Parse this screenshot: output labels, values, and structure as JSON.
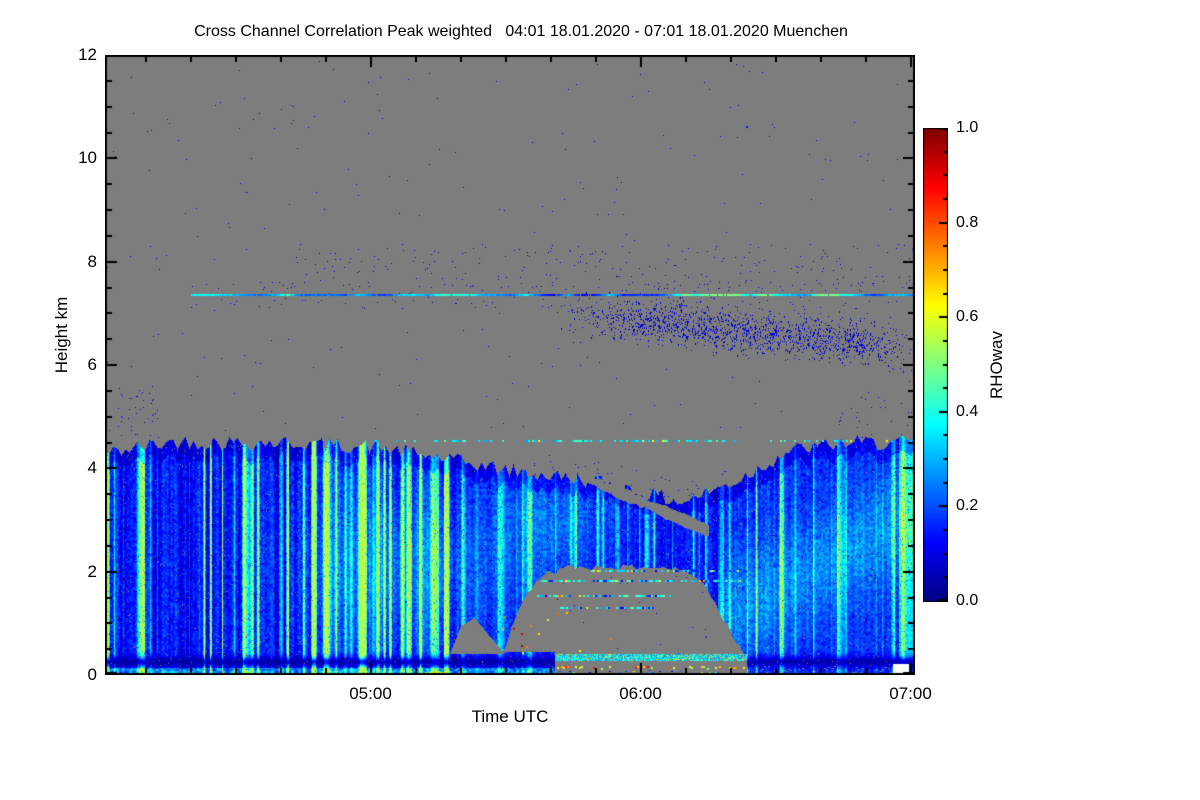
{
  "chart_data": {
    "type": "heatmap",
    "title": "Cross Channel Correlation Peak weighted   04:01 18.01.2020 - 07:01 18.01.2020 Muenchen",
    "xlabel": "Time UTC",
    "ylabel": "Height km",
    "time_start": "04:01",
    "time_end": "07:01",
    "date": "18.01.2020",
    "station": "Muenchen",
    "xticks": [
      "05:00",
      "06:00",
      "07:00"
    ],
    "xtick_t_minutes": [
      59,
      119,
      179
    ],
    "yticks": [
      12,
      10,
      8,
      6,
      4,
      2,
      0
    ],
    "ylim": [
      0,
      12
    ],
    "colorbar": {
      "label": "RHOwav",
      "tick_labels": [
        "0.0",
        "0.2",
        "0.4",
        "0.6",
        "0.8",
        "1.0"
      ],
      "range": [
        0,
        1
      ],
      "colormap": "jet"
    },
    "no_data_color": "#7d7d7d",
    "observed_features": [
      "boundary-layer / precipitation echo from 0 to ~4.5 km across whole period, RHOwav ~0.05-0.45, streaky vertical texture strongest 04:01-05:15",
      "echo top descends from ~4.5 km (05:30) to ~3.3 km (06:10) then recovers to ~4.5 km by 06:45",
      "echo-free gray notch below ~2.1 km between ~05:30 and 06:25 containing dotted speckle lines at ~2.0, 1.8, 1.5, 1.3 km and sparse warm (RHOwav 0.6-0.95) pixels",
      "bright cyan surface band ~0.3-0.4 km with yellow speckles below it from ~05:40 to 06:25",
      "dark navy band at ~0.25 km on left and right thirds",
      "thin persistent line at ~7.35 km from ~04:20 to 07:01, RHOwav ~0.1-0.5",
      "diffuse dark-blue speckle cloud descending ~7.1 to 6.3 km between ~05:45 and 07:00",
      "isolated dot near 10.6 km at ~06:23",
      "small white no-data gap at bottom right near 06:56-07:00 below 0.2 km"
    ],
    "render": {
      "seed": 42,
      "gray_rgb": [
        125,
        125,
        125
      ],
      "bl_top_profile": [
        [
          0,
          4.3
        ],
        [
          15,
          4.52
        ],
        [
          40,
          4.5
        ],
        [
          60,
          4.42
        ],
        [
          75,
          4.2
        ],
        [
          90,
          3.95
        ],
        [
          110,
          3.75
        ],
        [
          128,
          3.35
        ],
        [
          140,
          3.75
        ],
        [
          152,
          4.35
        ],
        [
          165,
          4.5
        ],
        [
          180,
          4.5
        ]
      ],
      "hump": {
        "t": [
          76,
          88.5
        ],
        "min_h": 0.42,
        "profile": [
          [
            76,
            0.3
          ],
          [
            79,
            0.95
          ],
          [
            82,
            1.12
          ],
          [
            85,
            0.8
          ],
          [
            88.5,
            0.45
          ]
        ]
      },
      "notch": {
        "t": [
          88.5,
          142.5
        ],
        "full_depth_from_t": 100,
        "profile": [
          [
            88.5,
            0.5
          ],
          [
            92,
            1.35
          ],
          [
            97,
            1.95
          ],
          [
            103,
            2.1
          ],
          [
            122,
            2.1
          ],
          [
            128,
            2.05
          ],
          [
            133,
            1.8
          ],
          [
            137,
            1.15
          ],
          [
            140,
            0.7
          ],
          [
            142.5,
            0.4
          ]
        ]
      },
      "wedge": {
        "t": [
          106,
          134
        ],
        "h_start": 3.85,
        "slope": -0.0375,
        "half_width": 0.1
      },
      "line_45": {
        "h": 4.52,
        "t": [
          58,
          180
        ],
        "dense_t": [
          93,
          141
        ]
      },
      "line_735": {
        "h": 7.36,
        "t": [
          19,
          180
        ],
        "bright_t": [
          128,
          163
        ]
      },
      "notch_lines": [
        {
          "h": 2.02,
          "t": [
            108,
            141
          ]
        },
        {
          "h": 1.82,
          "t": [
            96,
            141
          ]
        },
        {
          "h": 1.52,
          "t": [
            96,
            126
          ]
        },
        {
          "h": 1.3,
          "t": [
            101,
            122
          ]
        }
      ],
      "cloud": {
        "t": [
          98,
          180
        ],
        "h_start": 7.02,
        "slope": -0.0082
      },
      "cyan_band": {
        "t": [
          100,
          142.5
        ],
        "h": [
          0.28,
          0.4
        ]
      },
      "yellow_line": {
        "t": [
          100,
          142
        ],
        "h": [
          0.1,
          0.21
        ]
      },
      "left_yellow_t": [
        63,
        76
      ],
      "white_gap": {
        "t": [
          175,
          178.6
        ],
        "h_max": 0.22
      },
      "dark_band": {
        "center": 0.26,
        "sigma": 0.085
      },
      "high_dot": {
        "t": 142.5,
        "h": 10.62
      },
      "x_minor_t": [
        9,
        19,
        29,
        39,
        49,
        69,
        79,
        89,
        99,
        109,
        129,
        139,
        149,
        159,
        169
      ],
      "y_minor_km": [
        0.5,
        1,
        1.5,
        2.5,
        3,
        3.5,
        4.5,
        5,
        5.5,
        6.5,
        7,
        7.5,
        8.5,
        9,
        9.5,
        10.5,
        11,
        11.5
      ],
      "cb_minor_step": 0.05
    }
  }
}
